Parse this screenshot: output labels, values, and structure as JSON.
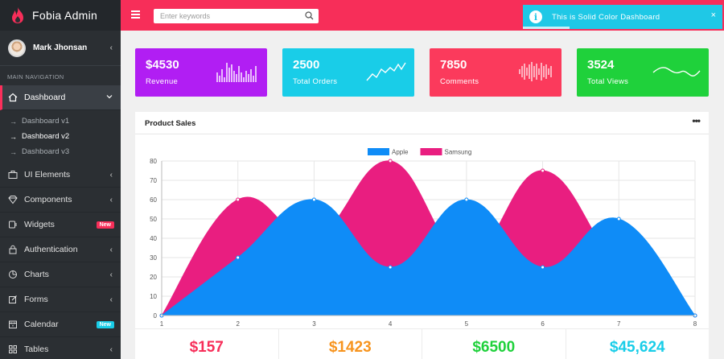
{
  "brand": {
    "name": "Fobia Admin"
  },
  "user": {
    "name": "Mark Jhonsan"
  },
  "nav": {
    "section_label": "MAIN NAVIGATION",
    "dashboard": "Dashboard",
    "subitems": [
      "Dashboard v1",
      "Dashboard v2",
      "Dashboard v3"
    ],
    "items": [
      {
        "label": "UI Elements",
        "icon": "briefcase-icon"
      },
      {
        "label": "Components",
        "icon": "diamond-icon"
      },
      {
        "label": "Widgets",
        "icon": "plug-icon",
        "badge": "New"
      },
      {
        "label": "Authentication",
        "icon": "lock-icon"
      },
      {
        "label": "Charts",
        "icon": "pie-chart-icon"
      },
      {
        "label": "Forms",
        "icon": "edit-icon"
      },
      {
        "label": "Calendar",
        "icon": "calendar-icon",
        "badge": "New"
      },
      {
        "label": "Tables",
        "icon": "grid-icon"
      }
    ]
  },
  "search": {
    "placeholder": "Enter keywords"
  },
  "toast": {
    "message": "This is Solid Color Dashboard"
  },
  "stats": [
    {
      "value": "$4530",
      "label": "Revenue",
      "color": "#b11ef3"
    },
    {
      "value": "2500",
      "label": "Total Orders",
      "color": "#19cde8"
    },
    {
      "value": "7850",
      "label": "Comments",
      "color": "#fb3a5c"
    },
    {
      "value": "3524",
      "label": "Total Views",
      "color": "#1fd13b"
    }
  ],
  "panel": {
    "title": "Product Sales"
  },
  "chart_data": {
    "type": "area",
    "x": [
      1,
      2,
      3,
      4,
      5,
      6,
      7,
      8
    ],
    "series": [
      {
        "name": "Apple",
        "color": "#0f8cf7",
        "values": [
          0,
          30,
          60,
          25,
          60,
          25,
          50,
          0
        ]
      },
      {
        "name": "Samsung",
        "color": "#e91e80",
        "values": [
          0,
          60,
          40,
          80,
          30,
          75,
          25,
          0
        ]
      }
    ],
    "ylim": [
      0,
      80
    ],
    "yticks": [
      0,
      10,
      20,
      30,
      40,
      50,
      60,
      70,
      80
    ],
    "grid": true,
    "legend": "top-center"
  },
  "totals": [
    {
      "value": "$157",
      "color": "#f72e59"
    },
    {
      "value": "$1423",
      "color": "#f7941e"
    },
    {
      "value": "$6500",
      "color": "#1fd13b"
    },
    {
      "value": "$45,624",
      "color": "#19cde8"
    }
  ]
}
